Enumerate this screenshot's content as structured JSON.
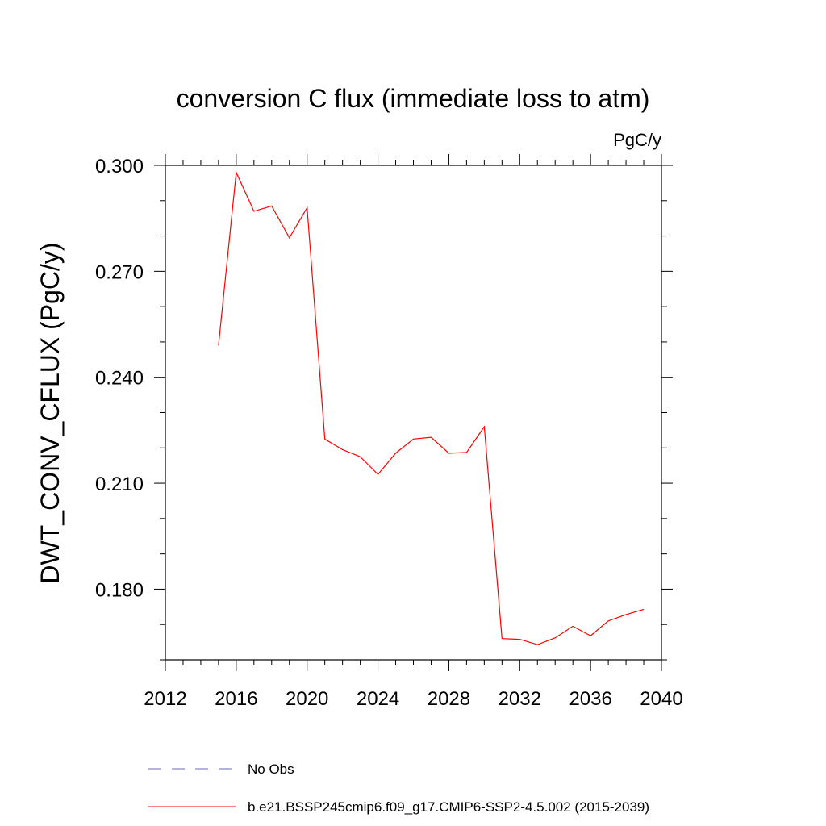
{
  "chart_data": {
    "type": "line",
    "title": "conversion C flux (immediate loss to atm)",
    "units_label": "PgC/y",
    "ylabel": "DWT_CONV_CFLUX  (PgC/y)",
    "xlabel": "",
    "xlim": [
      2012,
      2040
    ],
    "ylim": [
      0.16,
      0.3
    ],
    "xticks": [
      2012,
      2016,
      2020,
      2024,
      2028,
      2032,
      2036,
      2040
    ],
    "xtick_labels": [
      "2012",
      "2016",
      "2020",
      "2024",
      "2028",
      "2032",
      "2036",
      "2040"
    ],
    "xminor_step": 1,
    "yticks": [
      0.18,
      0.21,
      0.24,
      0.27,
      0.3
    ],
    "ytick_labels": [
      "0.180",
      "0.210",
      "0.240",
      "0.270",
      "0.300"
    ],
    "yminor_step": 0.01,
    "grid": false,
    "legend_position": "bottom",
    "series": [
      {
        "name": "b.e21.BSSP245cmip6.f09_g17.CMIP6-SSP2-4.5.002 (2015-2039)",
        "color": "#ff0000",
        "style": "solid",
        "x": [
          2015,
          2016,
          2017,
          2018,
          2019,
          2020,
          2021,
          2022,
          2023,
          2024,
          2025,
          2026,
          2027,
          2028,
          2029,
          2030,
          2031,
          2032,
          2033,
          2034,
          2035,
          2036,
          2037,
          2038,
          2039
        ],
        "y": [
          0.249,
          0.298,
          0.287,
          0.2885,
          0.2795,
          0.288,
          0.2225,
          0.2195,
          0.2175,
          0.2125,
          0.2185,
          0.2225,
          0.223,
          0.2185,
          0.2187,
          0.226,
          0.166,
          0.1658,
          0.1643,
          0.1662,
          0.1695,
          0.1668,
          0.171,
          0.1728,
          0.1743
        ]
      }
    ],
    "legend": [
      {
        "label": "No Obs",
        "color": "#6a6ab4",
        "style": "dashed"
      },
      {
        "label": "b.e21.BSSP245cmip6.f09_g17.CMIP6-SSP2-4.5.002 (2015-2039)",
        "color": "#ff0000",
        "style": "solid"
      }
    ]
  }
}
